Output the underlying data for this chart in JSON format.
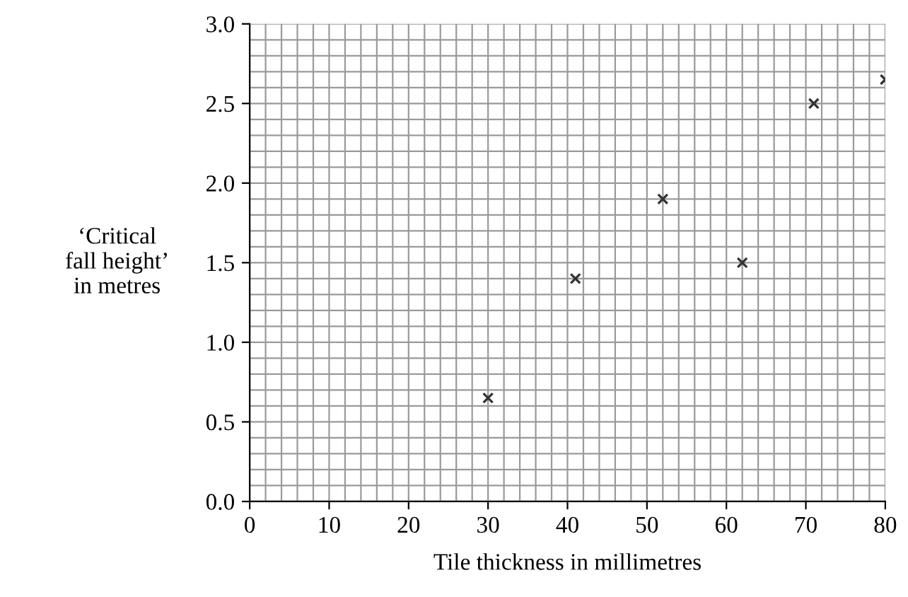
{
  "chart_data": {
    "type": "scatter",
    "xlabel": "Tile thickness in millimetres",
    "ylabel": "‘Critical\nfall height’\nin metres",
    "x": [
      30,
      41,
      52,
      62,
      71,
      80
    ],
    "values": [
      0.65,
      1.4,
      1.9,
      1.5,
      2.5,
      2.65
    ],
    "color": "#333333",
    "marker": "cross",
    "xlim": [
      0,
      80
    ],
    "ylim": [
      0,
      3
    ],
    "xticks": [
      0,
      10,
      20,
      30,
      40,
      50,
      60,
      70,
      80
    ],
    "yticks": [
      {
        "value": 0,
        "label": "0.0"
      },
      {
        "value": 0.5,
        "label": "0.5"
      },
      {
        "value": 1,
        "label": "1.0"
      },
      {
        "value": 1.5,
        "label": "1.5"
      },
      {
        "value": 2,
        "label": "2.0"
      },
      {
        "value": 2.5,
        "label": "2.5"
      },
      {
        "value": 3,
        "label": "3.0"
      }
    ],
    "grid": true
  }
}
